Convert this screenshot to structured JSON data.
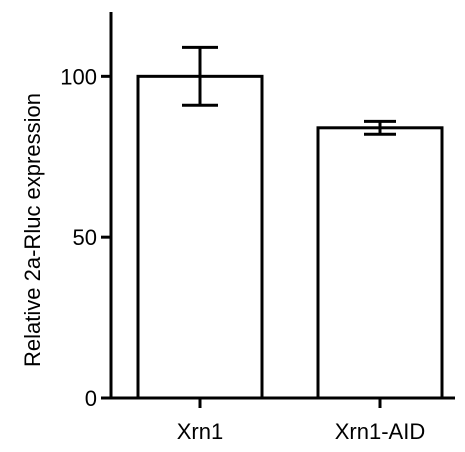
{
  "chart_data": {
    "type": "bar",
    "title": "",
    "xlabel": "",
    "ylabel": "Relative 2a-Rluc expression",
    "categories": [
      "Xrn1",
      "Xrn1-AID"
    ],
    "values": [
      100,
      84
    ],
    "error_bars": [
      {
        "low": 91,
        "high": 109
      },
      {
        "low": 82,
        "high": 86
      }
    ],
    "ylim": [
      0,
      120
    ],
    "yticks": [
      0,
      50,
      100
    ],
    "ytick_labels": [
      "0",
      "50",
      "100"
    ],
    "grid": false,
    "legend": "none",
    "bar_fill": "#ffffff",
    "bar_stroke": "#000000"
  }
}
